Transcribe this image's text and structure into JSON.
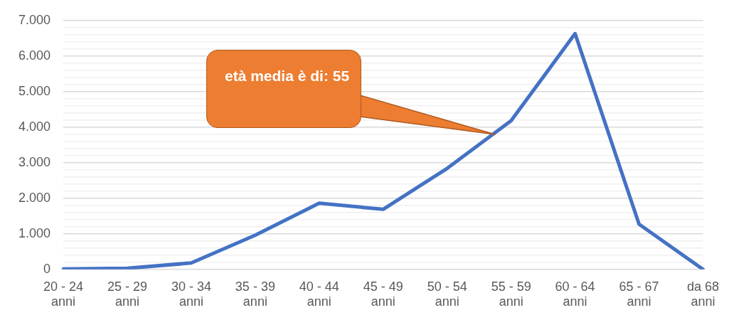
{
  "chart_data": {
    "type": "line",
    "categories": [
      "20 - 24 anni",
      "25 - 29 anni",
      "30 - 34 anni",
      "35 - 39 anni",
      "40 - 44 anni",
      "45 - 49 anni",
      "50 - 54 anni",
      "55 - 59 anni",
      "60 - 64 anni",
      "65 - 67 anni",
      "da 68 anni"
    ],
    "series": [
      {
        "color": "#4472c4",
        "values": [
          10,
          30,
          180,
          960,
          1860,
          1690,
          2840,
          4180,
          6630,
          1270,
          0
        ]
      }
    ],
    "ylim": [
      0,
      7000
    ],
    "yticks": [
      {
        "value": 0,
        "label": "0"
      },
      {
        "value": 200,
        "label": null
      },
      {
        "value": 400,
        "label": null
      },
      {
        "value": 600,
        "label": null
      },
      {
        "value": 800,
        "label": null
      },
      {
        "value": 1000,
        "label": "1.000"
      },
      {
        "value": 1200,
        "label": null
      },
      {
        "value": 1400,
        "label": null
      },
      {
        "value": 1600,
        "label": null
      },
      {
        "value": 1800,
        "label": null
      },
      {
        "value": 2000,
        "label": "2.000"
      },
      {
        "value": 2200,
        "label": null
      },
      {
        "value": 2400,
        "label": null
      },
      {
        "value": 2600,
        "label": null
      },
      {
        "value": 2800,
        "label": null
      },
      {
        "value": 3000,
        "label": "3.000"
      },
      {
        "value": 3200,
        "label": null
      },
      {
        "value": 3400,
        "label": null
      },
      {
        "value": 3600,
        "label": null
      },
      {
        "value": 3800,
        "label": null
      },
      {
        "value": 4000,
        "label": "4.000"
      },
      {
        "value": 4200,
        "label": null
      },
      {
        "value": 4400,
        "label": null
      },
      {
        "value": 4600,
        "label": null
      },
      {
        "value": 4800,
        "label": null
      },
      {
        "value": 5000,
        "label": "5.000"
      },
      {
        "value": 5200,
        "label": null
      },
      {
        "value": 5400,
        "label": null
      },
      {
        "value": 5600,
        "label": null
      },
      {
        "value": 5800,
        "label": null
      },
      {
        "value": 6000,
        "label": "6.000"
      },
      {
        "value": 6200,
        "label": null
      },
      {
        "value": 6400,
        "label": null
      },
      {
        "value": 6600,
        "label": null
      },
      {
        "value": 6800,
        "label": null
      },
      {
        "value": 7000,
        "label": "7.000"
      }
    ],
    "grid": "y",
    "legend": false,
    "marker": "none",
    "line_style": "solid",
    "annotations": [
      "età media è di: 55"
    ]
  }
}
